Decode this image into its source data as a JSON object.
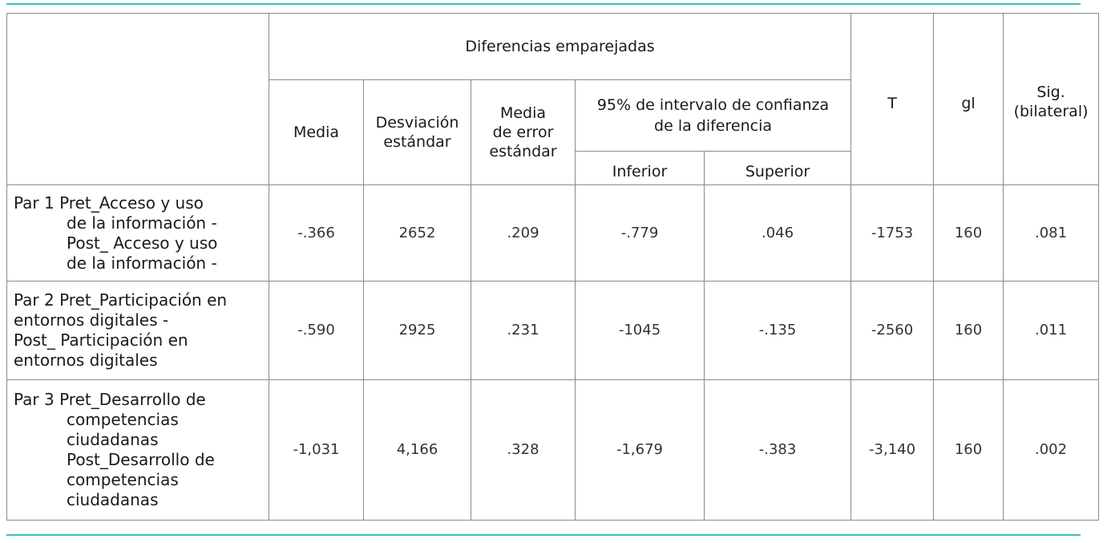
{
  "table": {
    "header": {
      "group": "Diferencias emparejadas",
      "media": "Media",
      "desviacion_l1": "Desviación",
      "desviacion_l2": "estándar",
      "error_l1": "Media",
      "error_l2": "de error",
      "error_l3": "estándar",
      "ci_l1": "95% de intervalo de confianza",
      "ci_l2": "de la diferencia",
      "inferior": "Inferior",
      "superior": "Superior",
      "t": "T",
      "gl": "gl",
      "sig_l1": "Sig.",
      "sig_l2": "(bilateral)"
    },
    "rows": [
      {
        "label_lines": [
          "Par 1  Pret_Acceso y uso",
          "de la información -",
          "Post_ Acceso y uso",
          "de la información -"
        ],
        "media": "-.366",
        "desviacion": "2652",
        "error": ".209",
        "inferior": "-.779",
        "superior": ".046",
        "t": "-1753",
        "gl": "160",
        "sig": ".081"
      },
      {
        "label_lines": [
          "Par 2  Pret_Participación en",
          "entornos digitales -",
          "Post_ Participación en",
          "entornos digitales"
        ],
        "media": "-.590",
        "desviacion": "2925",
        "error": ".231",
        "inferior": "-1045",
        "superior": "-.135",
        "t": "-2560",
        "gl": "160",
        "sig": ".011"
      },
      {
        "label_lines": [
          "Par 3  Pret_Desarrollo de",
          "competencias",
          "ciudadanas",
          "Post_Desarrollo de",
          "competencias",
          "ciudadanas"
        ],
        "media": "-1,031",
        "desviacion": "4,166",
        "error": ".328",
        "inferior": "-1,679",
        "superior": "-.383",
        "t": "-3,140",
        "gl": "160",
        "sig": ".002"
      }
    ]
  }
}
